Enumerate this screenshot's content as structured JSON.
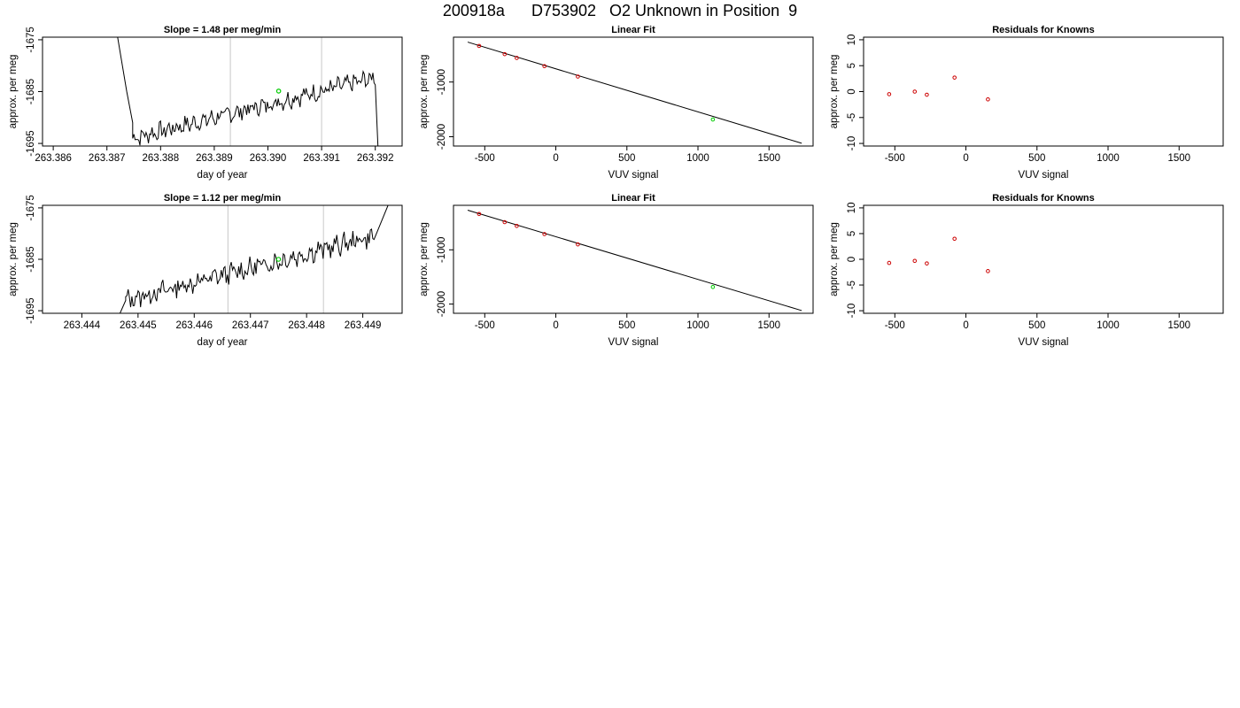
{
  "page": {
    "title": "200918a      D753902   O2 Unknown in Position  9"
  },
  "colors": {
    "data_line": "#000000",
    "known_points": "#cc0000",
    "unknown_point": "#00cc00",
    "marker_lines": "#c8c8c8",
    "frame": "#000000"
  },
  "chart_data": [
    {
      "type": "line",
      "title": "Slope =  1.48  per meg/min",
      "xlabel": "day of year",
      "ylabel": "approx. per meg",
      "xlim": [
        263.3858,
        263.3925
      ],
      "ylim": [
        -1695.5,
        -1674.5
      ],
      "xticks": [
        263.386,
        263.387,
        263.388,
        263.389,
        263.39,
        263.391,
        263.392
      ],
      "xtick_labels": [
        "263.386",
        "263.387",
        "263.388",
        "263.389",
        "263.390",
        "263.391",
        "263.392"
      ],
      "yticks": [
        -1675,
        -1685,
        -1695
      ],
      "ytick_labels": [
        "-1675",
        "-1685",
        "-1695"
      ],
      "marker_lines_x": [
        263.3893,
        263.391
      ],
      "unknown_point": {
        "x": 263.3902,
        "y": -1684.9
      },
      "series_segments": [
        {
          "start": 263.3872,
          "end": 263.38737,
          "yStart": -1674.5,
          "yEnd": -1685
        },
        {
          "start": 263.38737,
          "end": 263.38748,
          "yStart": -1685,
          "yEnd": -1691
        }
      ],
      "series": {
        "x_start": 263.38748,
        "x_end": 263.392,
        "n": 200,
        "y_start": -1694.0,
        "y_end": -1682.3,
        "amplitude": 1.4,
        "seed": 7,
        "tail_x": 263.39205,
        "tail_y": -1695.5
      }
    },
    {
      "type": "scatter",
      "title": "Linear Fit",
      "xlabel": "VUV signal",
      "ylabel": "approx. per meg",
      "xlim": [
        -720,
        1810
      ],
      "ylim": [
        -2170,
        -180
      ],
      "xticks": [
        -500,
        0,
        500,
        1000,
        1500
      ],
      "xtick_labels": [
        "-500",
        "0",
        "500",
        "1000",
        "1500"
      ],
      "yticks": [
        -1000,
        -2000
      ],
      "ytick_labels": [
        "-1000",
        "-2000"
      ],
      "fit_line": {
        "x": [
          -620,
          1730
        ],
        "y": [
          -270,
          -2120
        ]
      },
      "known_points": {
        "x": [
          -540,
          -360,
          -275,
          -80,
          155
        ],
        "y": [
          -340,
          -490,
          -560,
          -710,
          -900
        ]
      },
      "unknown_point": {
        "x": 1105,
        "y": -1685
      }
    },
    {
      "type": "scatter",
      "title": "Residuals for Knowns",
      "xlabel": "VUV signal",
      "ylabel": "approx. per meg",
      "xlim": [
        -720,
        1810
      ],
      "ylim": [
        -10.5,
        10.5
      ],
      "xticks": [
        -500,
        0,
        500,
        1000,
        1500
      ],
      "xtick_labels": [
        "-500",
        "0",
        "500",
        "1000",
        "1500"
      ],
      "yticks": [
        10,
        5,
        0,
        -5,
        -10
      ],
      "ytick_labels": [
        "10",
        "5",
        "0",
        "-5",
        "-10"
      ],
      "known_points": {
        "x": [
          -540,
          -360,
          -275,
          -80,
          155
        ],
        "y": [
          -0.5,
          0.0,
          -0.6,
          2.7,
          -1.5
        ]
      }
    },
    {
      "type": "line",
      "title": "Slope =  1.12  per meg/min",
      "xlabel": "day of year",
      "ylabel": "approx. per meg",
      "xlim": [
        263.4433,
        263.4497
      ],
      "ylim": [
        -1695.5,
        -1674.5
      ],
      "xticks": [
        263.444,
        263.445,
        263.446,
        263.447,
        263.448,
        263.449
      ],
      "xtick_labels": [
        "263.444",
        "263.445",
        "263.446",
        "263.447",
        "263.448",
        "263.449"
      ],
      "yticks": [
        -1675,
        -1685,
        -1695
      ],
      "ytick_labels": [
        "-1675",
        "-1685",
        "-1695"
      ],
      "marker_lines_x": [
        263.4466,
        263.4483
      ],
      "unknown_point": {
        "x": 263.4475,
        "y": -1685.0
      },
      "series_segments": [
        {
          "start": 263.44468,
          "end": 263.44478,
          "yStart": -1695.5,
          "yEnd": -1693
        }
      ],
      "series": {
        "x_start": 263.44478,
        "x_end": 263.4492,
        "n": 200,
        "y_start": -1693.0,
        "y_end": -1680.5,
        "amplitude": 1.6,
        "seed": 13,
        "tail_x": 263.44945,
        "tail_y": -1674.5
      }
    },
    {
      "type": "scatter",
      "title": "Linear Fit",
      "xlabel": "VUV signal",
      "ylabel": "approx. per meg",
      "xlim": [
        -720,
        1810
      ],
      "ylim": [
        -2170,
        -180
      ],
      "xticks": [
        -500,
        0,
        500,
        1000,
        1500
      ],
      "xtick_labels": [
        "-500",
        "0",
        "500",
        "1000",
        "1500"
      ],
      "yticks": [
        -1000,
        -2000
      ],
      "ytick_labels": [
        "-1000",
        "-2000"
      ],
      "fit_line": {
        "x": [
          -620,
          1730
        ],
        "y": [
          -270,
          -2120
        ]
      },
      "known_points": {
        "x": [
          -540,
          -360,
          -275,
          -80,
          155
        ],
        "y": [
          -340,
          -490,
          -560,
          -710,
          -900
        ]
      },
      "unknown_point": {
        "x": 1105,
        "y": -1685
      }
    },
    {
      "type": "scatter",
      "title": "Residuals for Knowns",
      "xlabel": "VUV signal",
      "ylabel": "approx. per meg",
      "xlim": [
        -720,
        1810
      ],
      "ylim": [
        -10.5,
        10.5
      ],
      "xticks": [
        -500,
        0,
        500,
        1000,
        1500
      ],
      "xtick_labels": [
        "-500",
        "0",
        "500",
        "1000",
        "1500"
      ],
      "yticks": [
        10,
        5,
        0,
        -5,
        -10
      ],
      "ytick_labels": [
        "10",
        "5",
        "0",
        "-5",
        "-10"
      ],
      "known_points": {
        "x": [
          -540,
          -360,
          -275,
          -80,
          155
        ],
        "y": [
          -0.7,
          -0.3,
          -0.8,
          4.0,
          -2.3
        ]
      }
    }
  ]
}
